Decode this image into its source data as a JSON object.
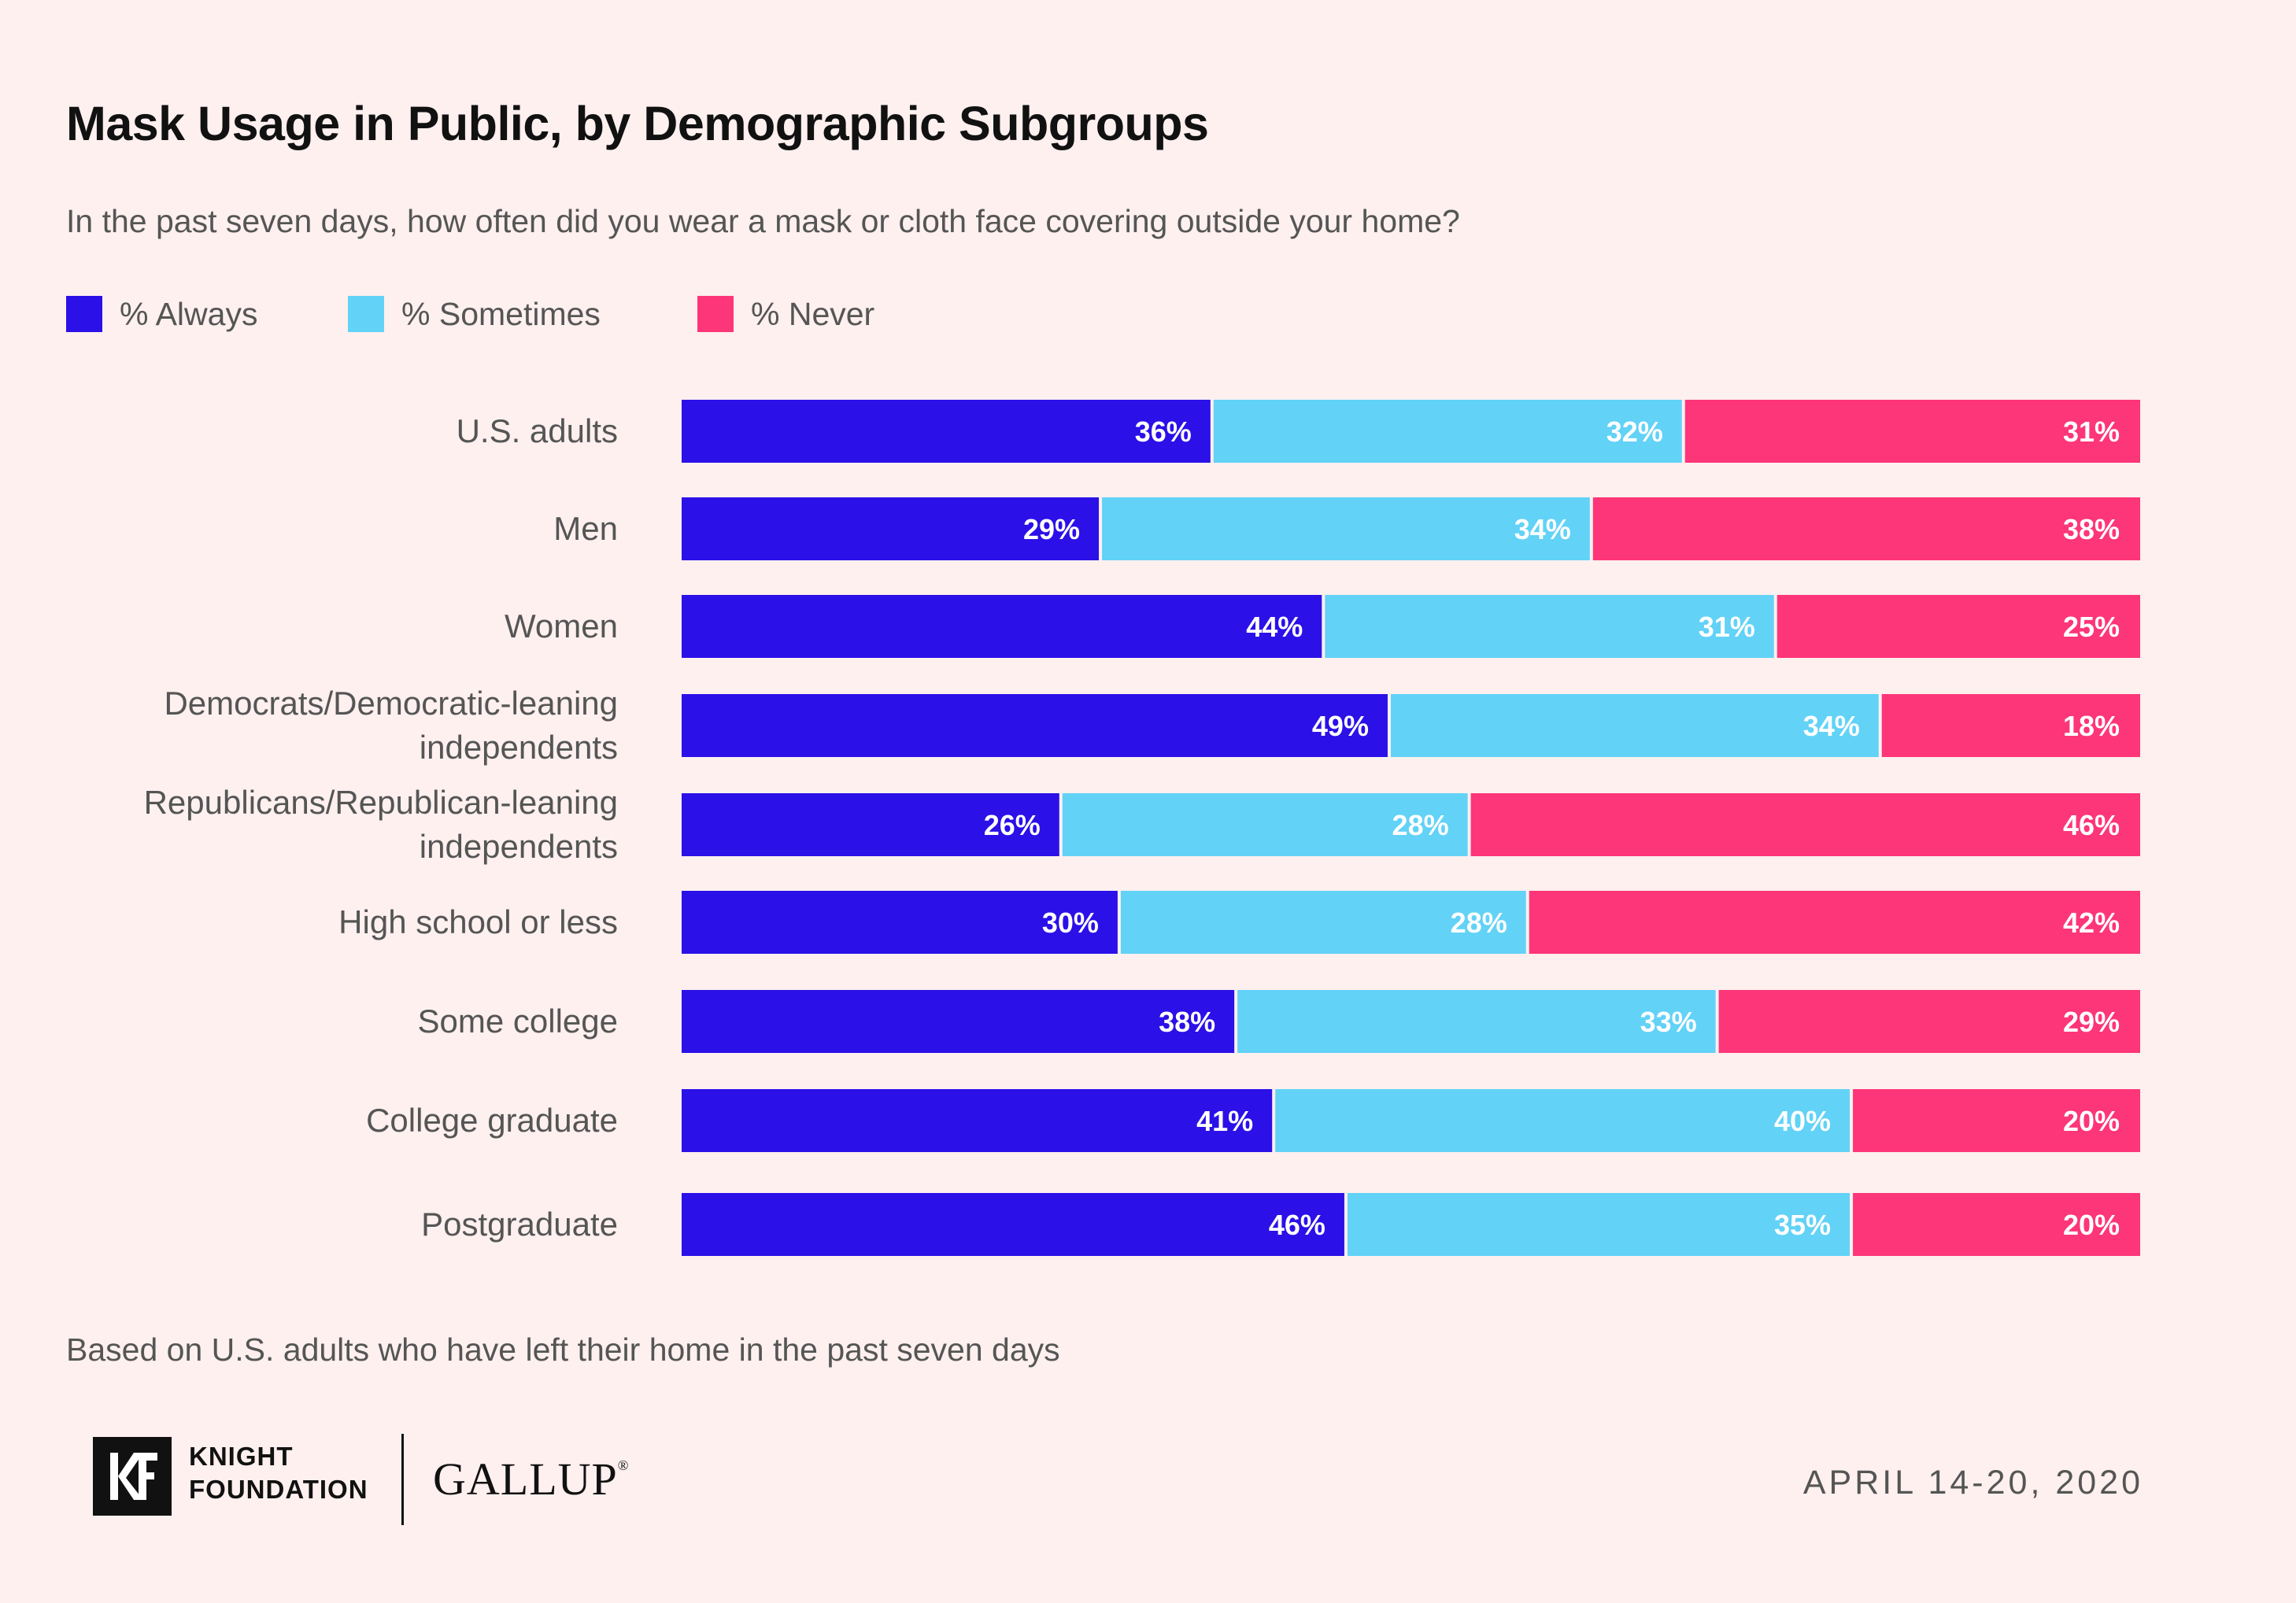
{
  "title": "Mask Usage in Public, by Demographic Subgroups",
  "subtitle": "In the past seven days, how often did you wear a mask or cloth face covering outside your home?",
  "legend": [
    {
      "label": "% Always",
      "color": "#2b10e8"
    },
    {
      "label": "% Sometimes",
      "color": "#62d2f7"
    },
    {
      "label": "% Never",
      "color": "#fd3579"
    }
  ],
  "chart_data": {
    "type": "bar",
    "orientation": "horizontal",
    "stacked": true,
    "categories": [
      "U.S. adults",
      "Men",
      "Women",
      "Democrats/Democratic-leaning independents",
      "Republicans/Republican-leaning independents",
      "High school or less",
      "Some college",
      "College graduate",
      "Postgraduate"
    ],
    "series": [
      {
        "name": "% Always",
        "color": "#2b10e8",
        "values": [
          36,
          29,
          44,
          49,
          26,
          30,
          38,
          41,
          46
        ]
      },
      {
        "name": "% Sometimes",
        "color": "#62d2f7",
        "values": [
          32,
          34,
          31,
          34,
          28,
          28,
          33,
          40,
          35
        ]
      },
      {
        "name": "% Never",
        "color": "#fd3579",
        "values": [
          31,
          38,
          25,
          18,
          46,
          42,
          29,
          20,
          20
        ]
      }
    ],
    "data_labels": [
      [
        "36%",
        "29%",
        "44%",
        "49%",
        "26%",
        "30%",
        "38%",
        "41%",
        "46%"
      ],
      [
        "32%",
        "34%",
        "31%",
        "34%",
        "28%",
        "28%",
        "33%",
        "40%",
        "35%"
      ],
      [
        "31%",
        "38%",
        "25%",
        "18%",
        "46%",
        "42%",
        "29%",
        "20%",
        "20%"
      ]
    ],
    "legend_position": "top-left",
    "grid": false
  },
  "footnote": "Based on U.S. adults who have left their home in the past seven days",
  "footer": {
    "logo_text": "KF",
    "knight_line1": "KNIGHT",
    "knight_line2": "FOUNDATION",
    "gallup": "GALLUP",
    "gallup_mark": "®",
    "date": "APRIL 14-20, 2020"
  }
}
